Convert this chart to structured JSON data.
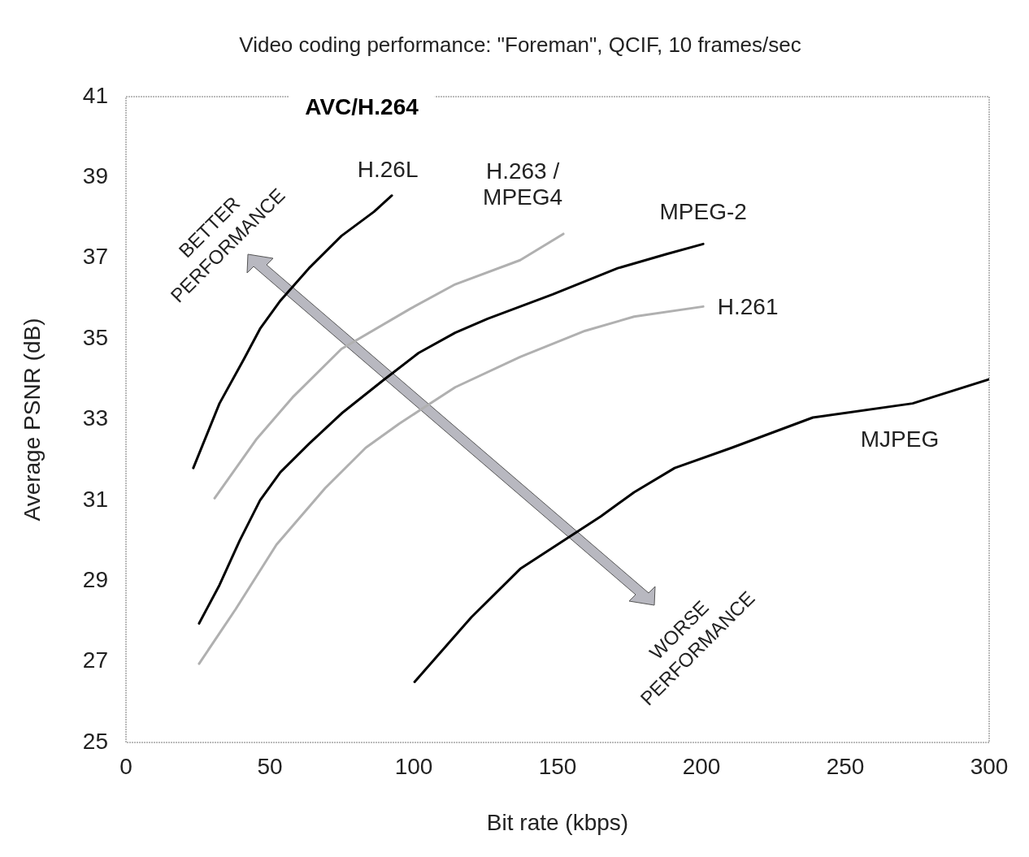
{
  "chart_data": {
    "type": "line",
    "title": "Video coding performance: \"Foreman\", QCIF, 10 frames/sec",
    "xlabel": "Bit rate (kbps)",
    "ylabel": "Average PSNR (dB)",
    "xlim": [
      0,
      300
    ],
    "xticks": [
      0,
      50,
      100,
      150,
      200,
      250,
      300
    ],
    "ylim": [
      25,
      41
    ],
    "yticks": [
      25,
      27,
      29,
      31,
      33,
      35,
      37,
      39,
      41
    ],
    "grid": false,
    "legend": false,
    "marker": "none",
    "line_style": "solid",
    "annotations": [
      "AVC/H.264",
      "BETTER PERFORMANCE",
      "WORSE PERFORMANCE"
    ],
    "series": [
      {
        "name": "H.26L",
        "color": "#000000",
        "x": [
          23.4,
          32.5,
          41,
          46.6,
          53.7,
          63.6,
          74.9,
          86.2,
          92.4
        ],
        "values": [
          31.8,
          33.4,
          34.5,
          35.25,
          35.95,
          36.75,
          37.55,
          38.15,
          38.55
        ]
      },
      {
        "name": "H.263 / MPEG4",
        "color": "#b0b0b0",
        "x": [
          30.8,
          45.2,
          57.9,
          74.9,
          98.9,
          114.4,
          137,
          152
        ],
        "values": [
          31.05,
          32.5,
          33.55,
          34.75,
          35.75,
          36.35,
          36.95,
          37.6
        ]
      },
      {
        "name": "MPEG-2",
        "color": "#000000",
        "x": [
          25.4,
          32.5,
          39.5,
          46.6,
          53.7,
          63.6,
          74.9,
          89,
          101.7,
          114.4,
          125.7,
          148.3,
          170.9,
          187.9,
          200.6
        ],
        "values": [
          27.95,
          28.9,
          30.0,
          31.0,
          31.7,
          32.4,
          33.15,
          33.95,
          34.65,
          35.15,
          35.5,
          36.1,
          36.75,
          37.1,
          37.35
        ]
      },
      {
        "name": "H.261",
        "color": "#b0b0b0",
        "x": [
          25.4,
          38.1,
          52.3,
          69.2,
          83.3,
          95,
          114.4,
          137,
          159.6,
          176.6,
          200.6
        ],
        "values": [
          26.95,
          28.3,
          29.9,
          31.3,
          32.3,
          32.9,
          33.8,
          34.55,
          35.2,
          35.55,
          35.8
        ]
      },
      {
        "name": "MJPEG",
        "color": "#000000",
        "x": [
          100.3,
          120,
          137,
          165,
          176.6,
          190.7,
          210.5,
          238.7,
          273.4,
          300
        ],
        "values": [
          26.5,
          28.1,
          29.3,
          30.6,
          31.2,
          31.8,
          32.3,
          33.05,
          33.4,
          34.0
        ]
      }
    ]
  }
}
